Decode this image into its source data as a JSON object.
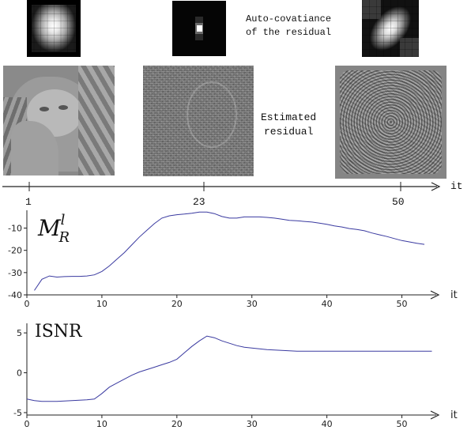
{
  "header": {
    "autocov_line1": "Auto-covatiance",
    "autocov_line2": "of the residual",
    "estimated_line1": "Estimated",
    "estimated_line2": "residual"
  },
  "timeline": {
    "axis_label": "it",
    "tick_labels": [
      "1",
      "23",
      "50"
    ]
  },
  "chart_data": [
    {
      "type": "line",
      "ylabel": "M_R^l",
      "ylabel_main": "M",
      "ylabel_sub": "R",
      "ylabel_sup": "l",
      "xlabel": "it",
      "xlim": [
        0,
        55
      ],
      "ylim": [
        -40,
        -2
      ],
      "x_ticks": [
        "0",
        "10",
        "20",
        "30",
        "40",
        "50"
      ],
      "y_ticks": [
        "-10",
        "-20",
        "-30",
        "-40"
      ],
      "line_color": "#3a3aa0",
      "x": [
        1,
        2,
        3,
        4,
        5,
        6,
        7,
        8,
        9,
        10,
        11,
        12,
        13,
        14,
        15,
        16,
        17,
        18,
        19,
        20,
        21,
        22,
        23,
        24,
        25,
        26,
        27,
        28,
        29,
        30,
        31,
        32,
        33,
        34,
        35,
        36,
        37,
        38,
        39,
        40,
        41,
        42,
        43,
        44,
        45,
        46,
        47,
        48,
        49,
        50,
        51,
        52,
        53
      ],
      "values": [
        -38,
        -33,
        -31.5,
        -32,
        -31.8,
        -31.7,
        -31.7,
        -31.5,
        -31,
        -29.5,
        -27,
        -24,
        -21,
        -17.5,
        -14,
        -11,
        -8,
        -5.5,
        -4.5,
        -4,
        -3.7,
        -3.3,
        -2.8,
        -2.8,
        -3.5,
        -4.8,
        -5.5,
        -5.5,
        -5,
        -5,
        -5,
        -5.2,
        -5.5,
        -6,
        -6.5,
        -6.7,
        -7,
        -7.3,
        -7.8,
        -8.3,
        -9,
        -9.5,
        -10.2,
        -10.6,
        -11.2,
        -12.2,
        -13,
        -13.8,
        -14.7,
        -15.6,
        -16.2,
        -16.8,
        -17.3
      ]
    },
    {
      "type": "line",
      "ylabel": "ISNR",
      "xlabel": "it",
      "xlim": [
        0,
        55
      ],
      "ylim": [
        -5.5,
        6.2
      ],
      "x_ticks": [
        "0",
        "10",
        "20",
        "30",
        "40",
        "50"
      ],
      "y_ticks": [
        "5",
        "0",
        "-5"
      ],
      "line_color": "#3a3aa0",
      "x": [
        0,
        1,
        2,
        3,
        4,
        5,
        6,
        7,
        8,
        9,
        10,
        11,
        12,
        13,
        14,
        15,
        16,
        17,
        18,
        19,
        20,
        21,
        22,
        23,
        24,
        25,
        26,
        27,
        28,
        29,
        30,
        31,
        32,
        33,
        34,
        35,
        36,
        37,
        38,
        39,
        40,
        41,
        42,
        43,
        44,
        45,
        46,
        47,
        48,
        49,
        50,
        51,
        52,
        53,
        54
      ],
      "values": [
        -3.3,
        -3.5,
        -3.6,
        -3.6,
        -3.6,
        -3.55,
        -3.5,
        -3.45,
        -3.4,
        -3.3,
        -2.6,
        -1.8,
        -1.3,
        -0.8,
        -0.3,
        0.1,
        0.4,
        0.7,
        1,
        1.3,
        1.7,
        2.5,
        3.3,
        4,
        4.6,
        4.4,
        4,
        3.7,
        3.4,
        3.2,
        3.1,
        3,
        2.9,
        2.85,
        2.8,
        2.75,
        2.7,
        2.7,
        2.7,
        2.7,
        2.7,
        2.7,
        2.7,
        2.7,
        2.7,
        2.7,
        2.7,
        2.7,
        2.7,
        2.7,
        2.7,
        2.7,
        2.7,
        2.7,
        2.7
      ]
    }
  ]
}
